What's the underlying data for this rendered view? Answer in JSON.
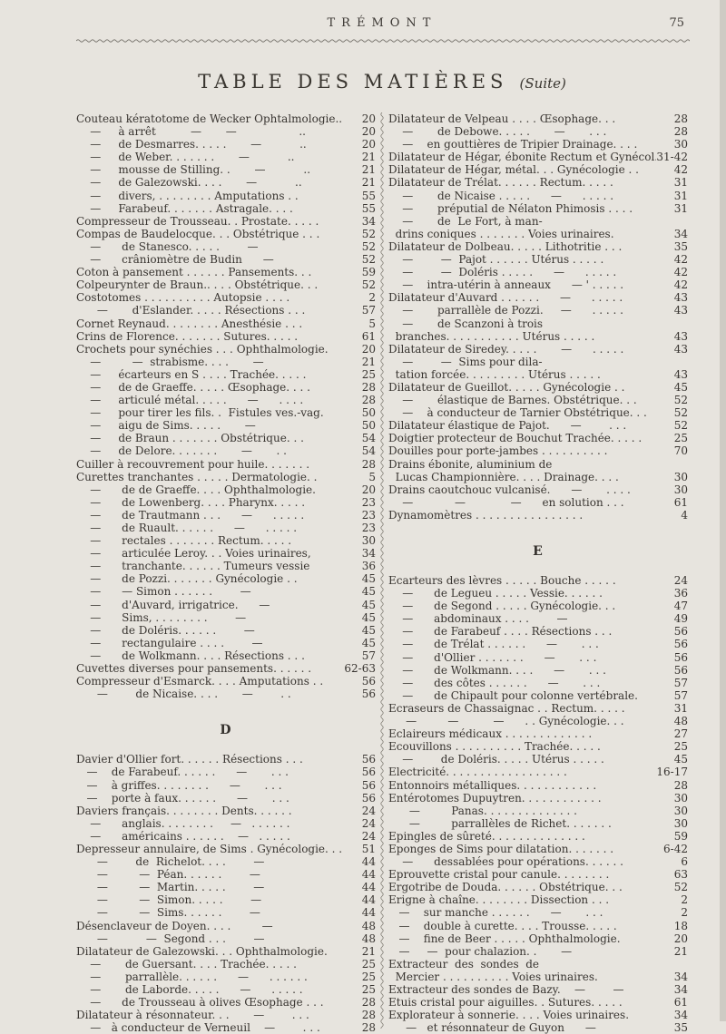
{
  "header": {
    "running_title": "TRÉMONT",
    "page_number": "75"
  },
  "title": {
    "main": "TABLE DES MATIÈRES",
    "suite": "(Suite)"
  },
  "left_column": {
    "blocks": [
      {
        "heading": "",
        "rows": [
          [
            "Couteau kératotome de Wecker Ophtalmologie..",
            "20"
          ],
          [
            "    —     à arrêt          —       —                  ..",
            "20"
          ],
          [
            "    —     de Desmarres. . . . .       —           ..",
            "20"
          ],
          [
            "    —     de Weber. . . . . . .       —           ..",
            "21"
          ],
          [
            "    —     mousse de Stilling. .       —           ..",
            "21"
          ],
          [
            "    —     de Galezowski. . . .       —           ..",
            "21"
          ],
          [
            "    —     divers, . . . . . . . . Amputations . .",
            "55"
          ],
          [
            "    —     Farabeuf. . . . . . . Astragale. . . .",
            "55"
          ],
          [
            "Compresseur de Trousseau. . Prostate. . . . .",
            "34"
          ],
          [
            "Compas de Baudelocque. . . Obstétrique . . .",
            "52"
          ],
          [
            "    —      de Stanesco. . . . .        —",
            "52"
          ],
          [
            "    —      crâniomètre de Budin      —",
            "52"
          ],
          [
            "Coton à pansement . . . . . . Pansements. . .",
            "59"
          ],
          [
            "Colpeurynter de Braun.. . . . Obstétrique. . .",
            "52"
          ],
          [
            "Costotomes . . . . . . . . . . Autopsie . . . .",
            "2"
          ],
          [
            "      —       d'Eslander. . . . . Résections . . .",
            "57"
          ],
          [
            "Cornet Reynaud. . . . . . . . Anesthésie . . .",
            "5"
          ],
          [
            "Crins de Florence. . . . . . . Sutures. . . . .",
            "61"
          ],
          [
            "Crochets pour synéchies . . . Ophthalmologie.",
            "20"
          ],
          [
            "    —         —  strabisme. . . .       —",
            "21"
          ],
          [
            "    —     écarteurs en S . . . . Trachée. . . . .",
            "25"
          ],
          [
            "    —     de de Graeffe. . . . . Œsophage. . . .",
            "28"
          ],
          [
            "    —     articulé métal. . . . .      —      . . . .",
            "28"
          ],
          [
            "    —     pour tirer les fils. .  Fistules ves.-vag.",
            "50"
          ],
          [
            "    —     aigu de Sims. . . . .       —",
            "50"
          ],
          [
            "    —     de Braun . . . . . . . Obstétrique. . .",
            "54"
          ],
          [
            "    —     de Delore. . . . . . .       —       . .",
            "54"
          ],
          [
            "Cuiller à recouvrement pour huile. . . . . . .",
            "28"
          ],
          [
            "Curettes tranchantes . . . . . Dermatologie. .",
            "5"
          ],
          [
            "    —      de de Graeffe. . . . Ophthalmologie.",
            "20"
          ],
          [
            "    —      de Lowenberg. . . . Pharynx. . . . .",
            "23"
          ],
          [
            "    —      de Trautmann . . .      —      . . . . .",
            "23"
          ],
          [
            "    —      de Ruault. . . . . .      —      . . . . .",
            "23"
          ],
          [
            "    —      rectales . . . . . . . Rectum. . . . .",
            "30"
          ],
          [
            "    —      articulée Leroy. . . Voies urinaires,",
            "34"
          ],
          [
            "    —      tranchante. . . . . . Tumeurs vessie",
            "36"
          ],
          [
            "    —      de Pozzi. . . . . . . Gynécologie . .",
            "45"
          ],
          [
            "    —      — Simon . . . . . .        —",
            "45"
          ],
          [
            "    —      d'Auvard, irrigatrice.      —",
            "45"
          ],
          [
            "    —      Sims, . . . . . . . .        —",
            "45"
          ],
          [
            "    —      de Doléris. . . . . .        —",
            "45"
          ],
          [
            "    —      rectangulaire . . . .        —",
            "45"
          ],
          [
            "    —      de Wolkmann. . . . Résections . . .",
            "57"
          ],
          [
            "Cuvettes diverses pour pansements. . . . . .",
            "62-63"
          ],
          [
            "Compresseur d'Esmarck. . . . Amputations . .",
            "56"
          ],
          [
            "      —        de Nicaise. . . .       —        . .",
            "56"
          ]
        ]
      },
      {
        "heading": "D",
        "rows": [
          [
            "Davier d'Ollier fort. . . . . . Résections . . .",
            "56"
          ],
          [
            "   —    de Farabeuf. . . . . .      —       . . .",
            "56"
          ],
          [
            "   —    à griffes. . . . . . . .      —       . . .",
            "56"
          ],
          [
            "   —    porte à faux. . . . . .      —       . . .",
            "56"
          ],
          [
            "Daviers français. . . . . . . . Dents. . . . . .",
            "24"
          ],
          [
            "    —      anglais. . . . . . . .     —   . . . . . .",
            "24"
          ],
          [
            "    —      américains . . . . . .    —   . . . . .",
            "24"
          ],
          [
            "Depresseur annulaire, de Sims . Gynécologie. . .",
            "51"
          ],
          [
            "      —        de  Richelot. . . .        —",
            "44"
          ],
          [
            "      —         —  Péan. . . . . .        —",
            "44"
          ],
          [
            "      —         —  Martin. . . . .        —",
            "44"
          ],
          [
            "      —         —  Simon. . . . .        —",
            "44"
          ],
          [
            "      —         —  Sims. . . . . .        —",
            "44"
          ],
          [
            "Désenclaveur de Doyen. . . .         —",
            "48"
          ],
          [
            "      —           —  Segond . . .        —",
            "48"
          ],
          [
            "Dilatateur de Galezowski. . . Ophthalmologie.",
            "21"
          ],
          [
            "    —       de Guersant. . . . Trachée. . . . .",
            "25"
          ],
          [
            "    —       parrallèle. . . . . .      —      . . . . . .",
            "25"
          ],
          [
            "    —       de Laborde. . . . .      —      . . . . .",
            "25"
          ],
          [
            "    —      de Trousseau à olives Œsophage . . .",
            "28"
          ],
          [
            "Dilatateur à résonnateur. . .       —        . . .",
            "28"
          ],
          [
            "    —   à conducteur de Verneuil    —        . . .",
            "28"
          ]
        ]
      }
    ]
  },
  "right_column": {
    "blocks": [
      {
        "heading": "",
        "rows": [
          [
            "Dilatateur de Velpeau . . . . Œsophage. . .",
            "28"
          ],
          [
            "    —       de Debowe. . . . .       —       . . .",
            "28"
          ],
          [
            "    —    en gouttières de Tripier Drainage. . . .",
            "30"
          ],
          [
            "Dilatateur de Hégar, ébonite Rectum et Gynécol.",
            "31-42"
          ],
          [
            "Dilatateur de Hégar, métal. . . Gynécologie . .",
            "42"
          ],
          [
            "Dilatateur de Trélat. . . . . . Rectum. . . . .",
            "31"
          ],
          [
            "    —       de Nicaise . . . . .      —      . . . . .",
            "31"
          ],
          [
            "    —       préputial de Nélaton Phimosis . . . .",
            "31"
          ],
          [
            "    —       de  Le Fort, à man-",
            ""
          ],
          [
            "  drins coniques . . . . . . . Voies urinaires.",
            "34"
          ],
          [
            "Dilatateur de Dolbeau. . . . . Lithotritie . . .",
            "35"
          ],
          [
            "    —        —  Pajot . . . . . . Utérus . . . . .",
            "42"
          ],
          [
            "    —        —  Doléris . . . . .      —      . . . . .",
            "42"
          ],
          [
            "    —    intra-utérin à anneaux      — ' . . . . .",
            "42"
          ],
          [
            "Dilatateur d'Auvard . . . . . .      —      . . . . .",
            "43"
          ],
          [
            "    —       parrallèle de Pozzi.     —      . . . . .",
            "43"
          ],
          [
            "    —       de Scanzoni à trois",
            ""
          ],
          [
            "  branches. . . . . . . . . . . Utérus . . . . .",
            "43"
          ],
          [
            "Dilatateur de Siredey. . . . .       —      . . . . .",
            "43"
          ],
          [
            "    —        —  Sims pour dila-",
            ""
          ],
          [
            "  tation forcée. . . . . . . . . Utérus . . . . .",
            "43"
          ],
          [
            "Dilatateur de Gueillot. . . . . Gynécologie . .",
            "45"
          ],
          [
            "    —       élastique de Barnes. Obstétrique. . .",
            "52"
          ],
          [
            "    —    à conducteur de Tarnier Obstétrique. . .",
            "52"
          ],
          [
            "Dilatateur élastique de Pajot.      —        . . .",
            "52"
          ],
          [
            "Doigtier protecteur de Bouchut Trachée. . . . .",
            "25"
          ],
          [
            "Douilles pour porte-jambes . . . . . . . . . .",
            "70"
          ],
          [
            "Drains ébonite, aluminium de",
            ""
          ],
          [
            "  Lucas Championnière. . . . Drainage. . . .",
            "30"
          ],
          [
            "Drains caoutchouc vulcanisé.      —       . . . .",
            "30"
          ],
          [
            "    —            —             —      en solution . . .",
            "61"
          ],
          [
            "Dynamomètres . . . . . . . . . . . . . . . .",
            "4"
          ]
        ]
      },
      {
        "heading": "E",
        "rows": [
          [
            "Ecarteurs des lèvres . . . . . Bouche . . . . .",
            "24"
          ],
          [
            "    —      de Legueu . . . . . Vessie. . . . . .",
            "36"
          ],
          [
            "    —      de Segond . . . . . Gynécologie. . .",
            "47"
          ],
          [
            "    —      abdominaux . . . .        —",
            "49"
          ],
          [
            "    —      de Farabeuf . . . . Résections . . .",
            "56"
          ],
          [
            "    —      de Trélat . . . . . .      —       . . .",
            "56"
          ],
          [
            "    —      d'Ollier . . . . . . .      —       . . .",
            "56"
          ],
          [
            "    —      de Wolkmann. . . .      —       . . .",
            "56"
          ],
          [
            "    —      des côtes . . . . . .      —       . . .",
            "57"
          ],
          [
            "    —      de Chipault pour colonne vertébrale.",
            "57"
          ],
          [
            "Ecraseurs de Chassaignac . . Rectum. . . . .",
            "31"
          ],
          [
            "     —         —          —      . . Gynécologie. . .",
            "48"
          ],
          [
            "Eclaireurs médicaux . . . . . . . . . . . . .",
            "27"
          ],
          [
            "Ecouvillons . . . . . . . . . . Trachée. . . . .",
            "25"
          ],
          [
            "    —        de Doléris. . . . . Utérus . . . . .",
            "45"
          ],
          [
            "Electricité. . . . . . . . . . . . . . . . . .",
            "16-17"
          ],
          [
            "Entonnoirs métalliques. . . . . . . . . . . .",
            "28"
          ],
          [
            "Entérotomes Dupuytren. . . . . . . . . . . .",
            "30"
          ],
          [
            "      —         Panas. . . . . . . . . . . . . .",
            "30"
          ],
          [
            "      —         parrallèles de Richet. . . . . . .",
            "30"
          ],
          [
            "Epingles de sûreté. . . . . . . . . . . . . .",
            "59"
          ],
          [
            "Eponges de Sims pour dilatation. . . . . . .",
            "6-42"
          ],
          [
            "    —      dessablées pour opérations. . . . . .",
            "6"
          ],
          [
            "Eprouvette cristal pour canule. . . . . . . .",
            "63"
          ],
          [
            "Ergotribe de Douda. . . . . . Obstétrique. . .",
            "52"
          ],
          [
            "Erigne à chaîne. . . . . . . . Dissection . . .",
            "2"
          ],
          [
            "   —    sur manche . . . . . .      —       . . .",
            "2"
          ],
          [
            "   —    double à curette. . . . Trousse. . . . .",
            "18"
          ],
          [
            "   —    fine de Beer . . . . . Ophthalmologie.",
            "20"
          ],
          [
            "   —     —  pour chalazion. .       —",
            "21"
          ],
          [
            "Extracteur  des  sondes  de",
            ""
          ],
          [
            "  Mercier . . . . . . . . . . Voies urinaires.",
            "34"
          ],
          [
            "Extracteur des sondes de Bazy.    —        —",
            "34"
          ],
          [
            "Etuis cristal pour aiguilles. . Sutures. . . . .",
            "61"
          ],
          [
            "Explorateur à sonnerie. . . . Voies urinaires.",
            "34"
          ],
          [
            "     —   et résonnateur de Guyon      —",
            "35"
          ]
        ]
      }
    ]
  }
}
